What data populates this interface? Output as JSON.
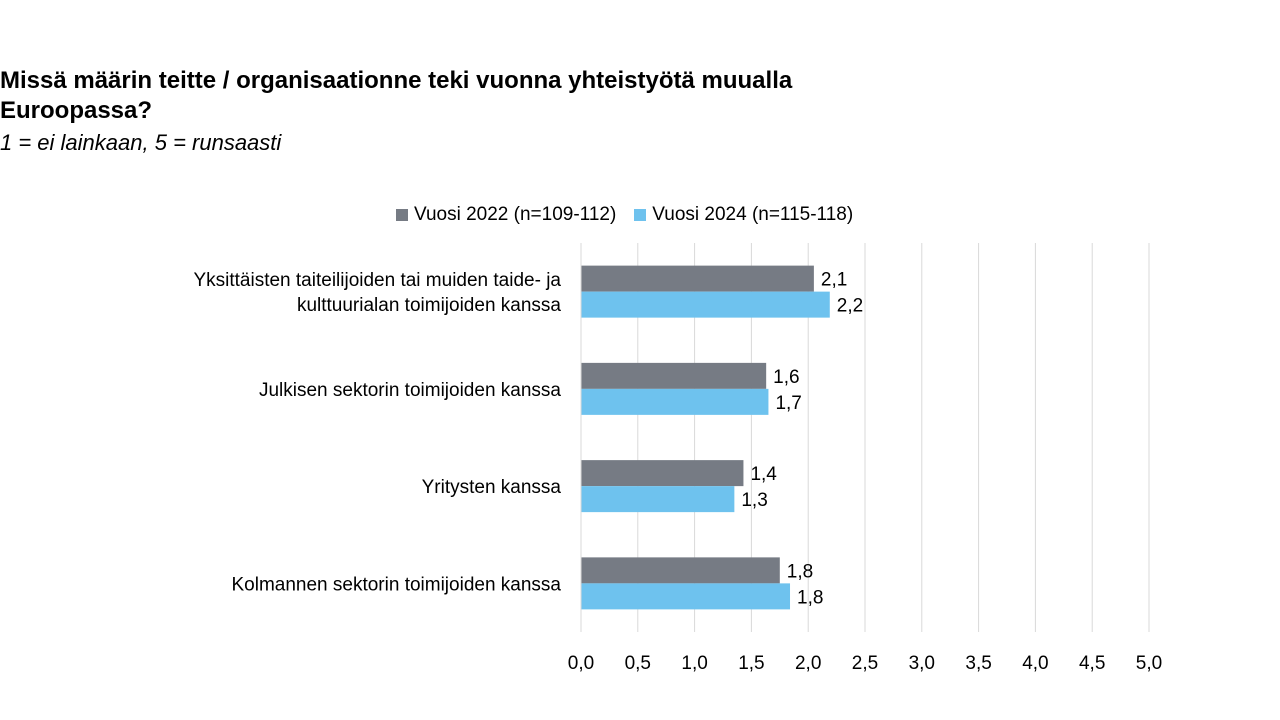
{
  "chart_data": {
    "type": "bar",
    "orientation": "horizontal",
    "title_lines": [
      "Missä määrin teitte / organisaationne teki vuonna  yhteistyötä muualla",
      "Euroopassa?"
    ],
    "subtitle": "1 = ei lainkaan, 5 = runsaasti",
    "categories": [
      [
        "Yksittäisten taiteilijoiden tai muiden taide- ja",
        "kulttuurialan toimijoiden kanssa"
      ],
      [
        "Julkisen sektorin toimijoiden kanssa"
      ],
      [
        "Yritysten kanssa"
      ],
      [
        "Kolmannen sektorin toimijoiden kanssa"
      ]
    ],
    "series": [
      {
        "name": "Vuosi 2022 (n=109-112)",
        "color": "#767b84",
        "values": [
          2.05,
          1.63,
          1.43,
          1.75
        ],
        "labels": [
          "2,1",
          "1,6",
          "1,4",
          "1,8"
        ]
      },
      {
        "name": "Vuosi 2024 (n=115-118)",
        "color": "#6ec2ee",
        "values": [
          2.19,
          1.65,
          1.35,
          1.84
        ],
        "labels": [
          "2,2",
          "1,7",
          "1,3",
          "1,8"
        ]
      }
    ],
    "xlim": [
      0,
      5
    ],
    "xticks": [
      0,
      0.5,
      1,
      1.5,
      2,
      2.5,
      3,
      3.5,
      4,
      4.5,
      5
    ],
    "xtick_labels": [
      "0,0",
      "0,5",
      "1,0",
      "1,5",
      "2,0",
      "2,5",
      "3,0",
      "3,5",
      "4,0",
      "4,5",
      "5,0"
    ],
    "grid": true,
    "legend_position": "top"
  }
}
